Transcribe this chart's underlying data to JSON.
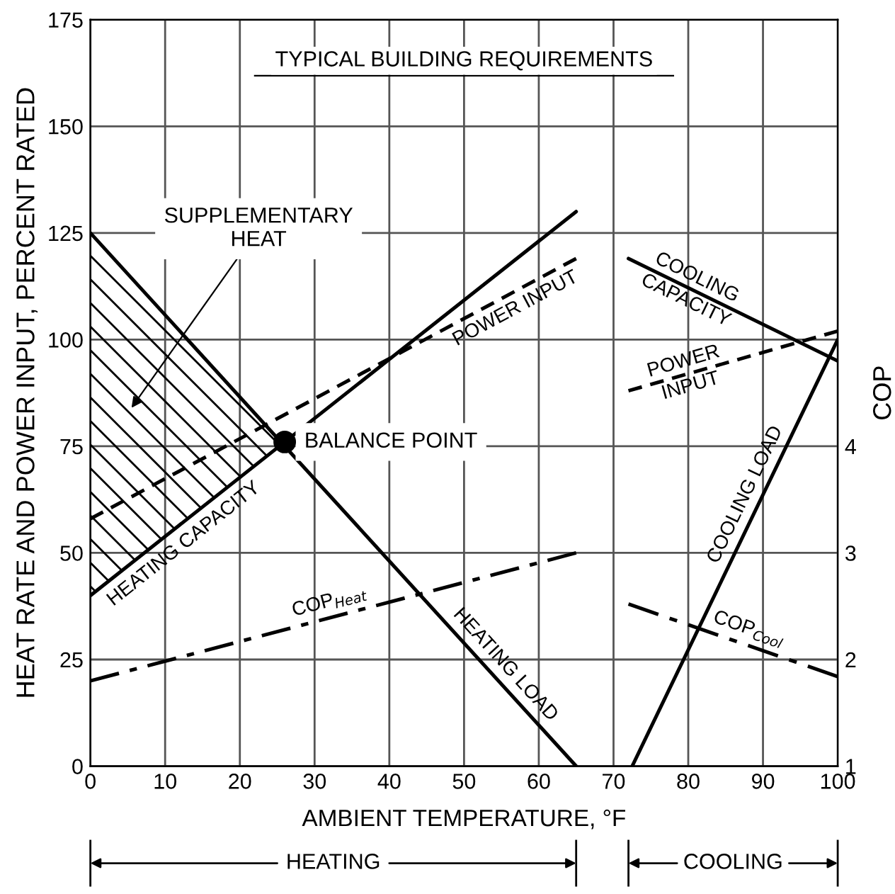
{
  "chart_data": {
    "type": "line",
    "title": "TYPICAL BUILDING REQUIREMENTS",
    "xlabel": "AMBIENT TEMPERATURE, °F",
    "ylabel": "HEAT RATE AND POWER INPUT, PERCENT RATED",
    "y2label": "COP",
    "xlim": [
      0,
      100
    ],
    "xticks": [
      0,
      10,
      20,
      30,
      40,
      50,
      60,
      70,
      80,
      90,
      100
    ],
    "ylim": [
      0,
      175
    ],
    "yticks": [
      0,
      25,
      50,
      75,
      100,
      125,
      150,
      175
    ],
    "y2lim": [
      1,
      8
    ],
    "y2ticks": [
      1,
      2,
      3,
      4
    ],
    "grid": true,
    "series": [
      {
        "name": "HEATING CAPACITY",
        "color": "#000000",
        "line_style": "solid",
        "x": [
          0,
          65
        ],
        "values": [
          40,
          130
        ]
      },
      {
        "name": "POWER INPUT",
        "color": "#000000",
        "line_style": "dashed",
        "x": [
          0,
          65
        ],
        "values": [
          58,
          119
        ]
      },
      {
        "name": "HEATING LOAD",
        "color": "#000000",
        "line_style": "solid",
        "x": [
          0,
          65
        ],
        "values": [
          125,
          0
        ]
      },
      {
        "name": "COP$_{Heat}$",
        "color": "#000000",
        "line_style": "dashdot",
        "axis": "y2",
        "x": [
          0,
          65
        ],
        "values": [
          1.8,
          3.0
        ]
      },
      {
        "name": "COOLING\nCAPACITY",
        "color": "#000000",
        "line_style": "solid",
        "x": [
          72,
          100
        ],
        "values": [
          119,
          95
        ]
      },
      {
        "name": "POWER\nINPUT",
        "color": "#000000",
        "line_style": "dashed",
        "x": [
          72,
          100
        ],
        "values": [
          88,
          102
        ]
      },
      {
        "name": "COOLING LOAD",
        "color": "#000000",
        "line_style": "solid",
        "x": [
          72.5,
          100
        ],
        "values": [
          0,
          100
        ]
      },
      {
        "name": "COP$_{Cool}$",
        "color": "#000000",
        "line_style": "dashdot",
        "axis": "y2",
        "x": [
          72,
          100
        ],
        "values": [
          2.52,
          1.84
        ]
      },
      {
        "name": "BALANCE POINT",
        "type": "scatter",
        "color": "#000000",
        "marker": "circle",
        "x": [
          26
        ],
        "values": [
          76
        ]
      }
    ],
    "annotations": [
      "SUPPLEMENTARY\nHEAT",
      "HEATING",
      "COOLING"
    ]
  }
}
